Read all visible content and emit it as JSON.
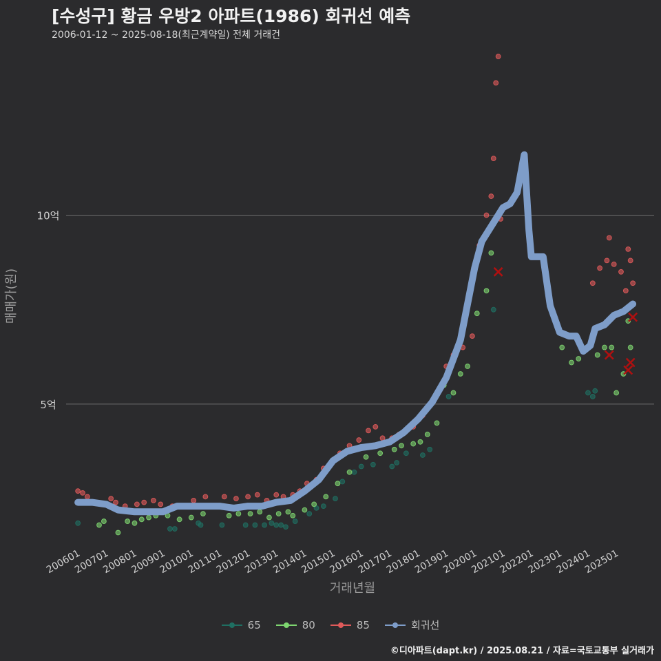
{
  "title": "[수성구] 황금 우방2 아파트(1986) 회귀선 예측",
  "subtitle": "2006-01-12 ~ 2025-08-18(최근계약일) 전체 거래건",
  "caption": "©디아파트(dapt.kr) / 2025.08.21 / 자료=국토교통부 실거래가",
  "colors": {
    "background": "#2b2b2d",
    "grid": "#6f6f6f",
    "s65": "#1f6f62",
    "s80": "#7ed670",
    "s85": "#e05a5a",
    "regression": "#7e9dc9",
    "cancelled": "#b01010"
  },
  "chart_data": {
    "type": "scatter",
    "xlabel": "거래년월",
    "ylabel": "매매가(원)",
    "x_range": [
      "2005-08",
      "2026-05"
    ],
    "ylim": [
      1.3,
      14.6
    ],
    "y_ticks": [
      {
        "value": 5,
        "label": "5억"
      },
      {
        "value": 10,
        "label": "10억"
      }
    ],
    "x_ticks": [
      "200601",
      "200701",
      "200801",
      "200901",
      "201001",
      "201101",
      "201201",
      "201301",
      "201401",
      "201501",
      "201601",
      "201701",
      "201801",
      "201901",
      "202001",
      "202101",
      "202201",
      "202301",
      "202401",
      "202501"
    ],
    "legend": [
      {
        "name": "65",
        "key": "s65"
      },
      {
        "name": "80",
        "key": "s80"
      },
      {
        "name": "85",
        "key": "s85"
      },
      {
        "name": "회귀선",
        "key": "regression"
      }
    ],
    "regression": [
      [
        "2006-01",
        2.4
      ],
      [
        "2006-07",
        2.4
      ],
      [
        "2007-01",
        2.35
      ],
      [
        "2007-06",
        2.2
      ],
      [
        "2008-01",
        2.15
      ],
      [
        "2008-06",
        2.15
      ],
      [
        "2009-01",
        2.15
      ],
      [
        "2009-07",
        2.3
      ],
      [
        "2010-01",
        2.3
      ],
      [
        "2010-07",
        2.3
      ],
      [
        "2011-01",
        2.3
      ],
      [
        "2011-07",
        2.25
      ],
      [
        "2012-01",
        2.3
      ],
      [
        "2012-07",
        2.3
      ],
      [
        "2013-01",
        2.4
      ],
      [
        "2013-07",
        2.45
      ],
      [
        "2014-01",
        2.7
      ],
      [
        "2014-07",
        3.0
      ],
      [
        "2015-01",
        3.5
      ],
      [
        "2015-07",
        3.75
      ],
      [
        "2016-01",
        3.85
      ],
      [
        "2016-07",
        3.9
      ],
      [
        "2017-01",
        4.0
      ],
      [
        "2017-07",
        4.25
      ],
      [
        "2018-01",
        4.6
      ],
      [
        "2018-07",
        5.05
      ],
      [
        "2019-01",
        5.7
      ],
      [
        "2019-07",
        6.7
      ],
      [
        "2020-01",
        8.6
      ],
      [
        "2020-04",
        9.3
      ],
      [
        "2020-07",
        9.6
      ],
      [
        "2020-10",
        9.9
      ],
      [
        "2021-01",
        10.2
      ],
      [
        "2021-04",
        10.3
      ],
      [
        "2021-07",
        10.6
      ],
      [
        "2021-10",
        11.6
      ],
      [
        "2021-12",
        9.6
      ],
      [
        "2022-01",
        8.9
      ],
      [
        "2022-06",
        8.9
      ],
      [
        "2022-09",
        7.6
      ],
      [
        "2023-01",
        6.9
      ],
      [
        "2023-05",
        6.8
      ],
      [
        "2023-08",
        6.8
      ],
      [
        "2023-11",
        6.4
      ],
      [
        "2024-02",
        6.55
      ],
      [
        "2024-04",
        7.0
      ],
      [
        "2024-08",
        7.1
      ],
      [
        "2024-12",
        7.35
      ],
      [
        "2025-04",
        7.45
      ],
      [
        "2025-08",
        7.65
      ]
    ],
    "cancelled": [
      [
        "2020-11",
        8.5
      ],
      [
        "2024-10",
        6.3
      ],
      [
        "2025-06",
        5.9
      ],
      [
        "2025-07",
        6.1
      ],
      [
        "2025-08",
        7.3
      ]
    ],
    "series": [
      {
        "name": "65",
        "points": [
          [
            "2006-01",
            1.85
          ],
          [
            "2009-04",
            1.7
          ],
          [
            "2009-06",
            1.7
          ],
          [
            "2010-04",
            1.85
          ],
          [
            "2010-05",
            1.8
          ],
          [
            "2011-02",
            1.8
          ],
          [
            "2011-12",
            1.8
          ],
          [
            "2012-04",
            1.8
          ],
          [
            "2012-08",
            1.8
          ],
          [
            "2012-11",
            1.85
          ],
          [
            "2013-01",
            1.8
          ],
          [
            "2013-03",
            1.8
          ],
          [
            "2013-05",
            1.75
          ],
          [
            "2013-09",
            1.9
          ],
          [
            "2014-03",
            2.1
          ],
          [
            "2014-06",
            2.25
          ],
          [
            "2014-09",
            2.3
          ],
          [
            "2015-02",
            2.5
          ],
          [
            "2015-05",
            2.95
          ],
          [
            "2015-10",
            3.2
          ],
          [
            "2016-01",
            3.35
          ],
          [
            "2016-06",
            3.4
          ],
          [
            "2017-02",
            3.35
          ],
          [
            "2017-04",
            3.45
          ],
          [
            "2017-08",
            3.7
          ],
          [
            "2018-03",
            3.65
          ],
          [
            "2018-06",
            3.8
          ],
          [
            "2019-02",
            5.2
          ],
          [
            "2020-09",
            7.5
          ],
          [
            "2024-01",
            5.3
          ],
          [
            "2024-03",
            5.2
          ],
          [
            "2024-04",
            5.35
          ]
        ]
      },
      {
        "name": "80",
        "points": [
          [
            "2006-10",
            1.8
          ],
          [
            "2006-12",
            1.9
          ],
          [
            "2007-06",
            1.6
          ],
          [
            "2007-10",
            1.9
          ],
          [
            "2008-01",
            1.85
          ],
          [
            "2008-04",
            1.95
          ],
          [
            "2008-07",
            2.0
          ],
          [
            "2008-10",
            2.05
          ],
          [
            "2009-03",
            2.05
          ],
          [
            "2009-08",
            1.95
          ],
          [
            "2010-01",
            2.0
          ],
          [
            "2010-06",
            2.1
          ],
          [
            "2011-05",
            2.05
          ],
          [
            "2011-09",
            2.1
          ],
          [
            "2012-02",
            2.1
          ],
          [
            "2012-06",
            2.15
          ],
          [
            "2012-10",
            2.0
          ],
          [
            "2013-02",
            2.1
          ],
          [
            "2013-06",
            2.15
          ],
          [
            "2013-08",
            2.05
          ],
          [
            "2014-01",
            2.2
          ],
          [
            "2014-05",
            2.35
          ],
          [
            "2014-10",
            2.55
          ],
          [
            "2015-03",
            2.9
          ],
          [
            "2015-08",
            3.2
          ],
          [
            "2016-03",
            3.6
          ],
          [
            "2016-09",
            3.7
          ],
          [
            "2017-03",
            3.8
          ],
          [
            "2017-06",
            3.9
          ],
          [
            "2017-11",
            3.95
          ],
          [
            "2018-02",
            4.0
          ],
          [
            "2018-05",
            4.2
          ],
          [
            "2018-09",
            4.5
          ],
          [
            "2018-12",
            5.5
          ],
          [
            "2019-04",
            5.3
          ],
          [
            "2019-07",
            5.8
          ],
          [
            "2019-10",
            6.0
          ],
          [
            "2020-02",
            7.4
          ],
          [
            "2020-06",
            8.0
          ],
          [
            "2020-08",
            9.0
          ],
          [
            "2023-02",
            6.5
          ],
          [
            "2023-06",
            6.1
          ],
          [
            "2023-09",
            6.2
          ],
          [
            "2024-05",
            6.3
          ],
          [
            "2024-08",
            6.5
          ],
          [
            "2024-11",
            6.5
          ],
          [
            "2025-01",
            5.3
          ],
          [
            "2025-04",
            5.8
          ],
          [
            "2025-06",
            7.2
          ],
          [
            "2025-07",
            6.5
          ]
        ]
      },
      {
        "name": "85",
        "points": [
          [
            "2006-01",
            2.7
          ],
          [
            "2006-03",
            2.65
          ],
          [
            "2006-05",
            2.55
          ],
          [
            "2007-03",
            2.5
          ],
          [
            "2007-05",
            2.4
          ],
          [
            "2007-09",
            2.3
          ],
          [
            "2008-02",
            2.35
          ],
          [
            "2008-05",
            2.4
          ],
          [
            "2008-09",
            2.45
          ],
          [
            "2008-12",
            2.35
          ],
          [
            "2009-05",
            2.3
          ],
          [
            "2009-09",
            2.3
          ],
          [
            "2010-02",
            2.45
          ],
          [
            "2010-07",
            2.55
          ],
          [
            "2011-03",
            2.55
          ],
          [
            "2011-08",
            2.5
          ],
          [
            "2012-01",
            2.55
          ],
          [
            "2012-05",
            2.6
          ],
          [
            "2012-09",
            2.45
          ],
          [
            "2013-01",
            2.6
          ],
          [
            "2013-04",
            2.55
          ],
          [
            "2013-08",
            2.6
          ],
          [
            "2013-11",
            2.7
          ],
          [
            "2014-02",
            2.9
          ],
          [
            "2014-06",
            3.0
          ],
          [
            "2014-09",
            3.3
          ],
          [
            "2015-01",
            3.5
          ],
          [
            "2015-04",
            3.7
          ],
          [
            "2015-08",
            3.9
          ],
          [
            "2015-12",
            4.05
          ],
          [
            "2016-04",
            4.3
          ],
          [
            "2016-07",
            4.4
          ],
          [
            "2016-10",
            4.1
          ],
          [
            "2017-02",
            4.1
          ],
          [
            "2017-05",
            4.2
          ],
          [
            "2017-08",
            4.3
          ],
          [
            "2017-11",
            4.4
          ],
          [
            "2018-03",
            4.7
          ],
          [
            "2018-06",
            5.0
          ],
          [
            "2018-09",
            5.3
          ],
          [
            "2019-01",
            6.0
          ],
          [
            "2019-04",
            6.3
          ],
          [
            "2019-08",
            6.5
          ],
          [
            "2019-12",
            6.8
          ],
          [
            "2020-03",
            9.2
          ],
          [
            "2020-06",
            10.0
          ],
          [
            "2020-08",
            10.5
          ],
          [
            "2020-09",
            11.5
          ],
          [
            "2020-10",
            13.5
          ],
          [
            "2020-11",
            14.2
          ],
          [
            "2020-12",
            9.9
          ],
          [
            "2024-03",
            8.2
          ],
          [
            "2024-06",
            8.6
          ],
          [
            "2024-09",
            8.8
          ],
          [
            "2024-10",
            9.4
          ],
          [
            "2024-12",
            8.7
          ],
          [
            "2025-03",
            8.5
          ],
          [
            "2025-05",
            8.0
          ],
          [
            "2025-06",
            9.1
          ],
          [
            "2025-07",
            8.8
          ],
          [
            "2025-08",
            8.2
          ]
        ]
      }
    ]
  }
}
